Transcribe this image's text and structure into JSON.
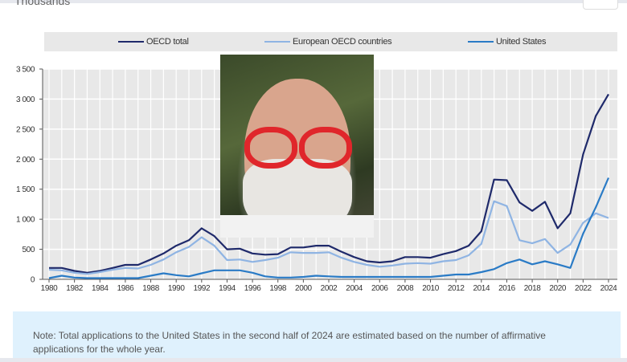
{
  "header": {
    "unit_label": "Thousands"
  },
  "note": "Note: Total applications to the United States in the second half of 2024 are estimated based on the number of affirmative applications for the whole year.",
  "chart_data": {
    "type": "line",
    "title": "",
    "ylabel": "Thousands",
    "xlabel": "",
    "ylim": [
      0,
      3500
    ],
    "yticks": [
      0,
      500,
      1000,
      1500,
      2000,
      2500,
      3000,
      3500
    ],
    "ytick_labels": [
      "0",
      "500",
      "1 000",
      "1 500",
      "2 000",
      "2 500",
      "3 000",
      "3 500"
    ],
    "xtick_labels": [
      "1980",
      "1982",
      "1984",
      "1986",
      "1988",
      "1990",
      "1992",
      "1994",
      "1996",
      "1998",
      "2000",
      "2002",
      "2004",
      "2006",
      "2008",
      "2010",
      "2012",
      "2014",
      "2016",
      "2018",
      "2020",
      "2022",
      "2024"
    ],
    "legend_position": "top",
    "grid": true,
    "x": [
      1980,
      1981,
      1982,
      1983,
      1984,
      1985,
      1986,
      1987,
      1988,
      1989,
      1990,
      1991,
      1992,
      1993,
      1994,
      1995,
      1996,
      1997,
      1998,
      1999,
      2000,
      2001,
      2002,
      2003,
      2004,
      2005,
      2006,
      2007,
      2008,
      2009,
      2010,
      2011,
      2012,
      2013,
      2014,
      2015,
      2016,
      2017,
      2018,
      2019,
      2020,
      2021,
      2022,
      2023,
      2024
    ],
    "series": [
      {
        "name": "OECD total",
        "color": "#1f2a6b",
        "values": [
          190,
          190,
          140,
          110,
          140,
          190,
          240,
          240,
          330,
          430,
          560,
          650,
          850,
          720,
          500,
          510,
          430,
          410,
          420,
          530,
          530,
          560,
          560,
          460,
          370,
          300,
          280,
          300,
          370,
          370,
          360,
          420,
          470,
          560,
          800,
          1660,
          1650,
          1280,
          1140,
          1290,
          850,
          1100,
          2080,
          2720,
          3080
        ]
      },
      {
        "name": "European OECD countries",
        "color": "#8fb4e3",
        "values": [
          160,
          150,
          110,
          90,
          120,
          160,
          190,
          180,
          240,
          330,
          450,
          540,
          700,
          560,
          320,
          330,
          290,
          320,
          360,
          450,
          440,
          440,
          450,
          360,
          290,
          240,
          210,
          230,
          260,
          270,
          260,
          300,
          320,
          400,
          590,
          1300,
          1220,
          650,
          600,
          670,
          440,
          580,
          940,
          1100,
          1020
        ]
      },
      {
        "name": "United States",
        "color": "#2a7bc6",
        "values": [
          20,
          60,
          30,
          20,
          20,
          20,
          20,
          20,
          60,
          100,
          70,
          50,
          100,
          150,
          150,
          150,
          110,
          50,
          30,
          30,
          40,
          60,
          50,
          40,
          40,
          40,
          40,
          40,
          40,
          40,
          40,
          60,
          80,
          80,
          120,
          170,
          270,
          330,
          250,
          300,
          250,
          190,
          760,
          1200,
          1690
        ]
      }
    ]
  }
}
